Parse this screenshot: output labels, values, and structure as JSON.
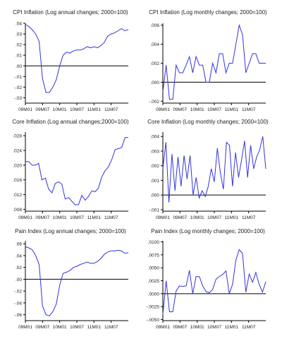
{
  "colors": {
    "line": "#3333dd",
    "axis": "#000000",
    "zero": "#000000"
  },
  "x_ticks": [
    "09M01",
    "09M07",
    "10M01",
    "10M07",
    "11M01",
    "11M07"
  ],
  "chart_data": [
    {
      "type": "line",
      "title": "CPI Inflation (Log annual changes; 2000=100)",
      "ylim": [
        -0.035,
        0.04
      ],
      "yticks": [
        ".04",
        ".03",
        ".02",
        ".01",
        ".00",
        "-.01",
        "-.02",
        "-.03"
      ],
      "ytick_values": [
        0.04,
        0.03,
        0.02,
        0.01,
        0.0,
        -0.01,
        -0.02,
        -0.03
      ],
      "zero_line": 0,
      "series": [
        {
          "values": [
            0.039,
            0.037,
            0.034,
            0.03,
            0.023,
            -0.012,
            -0.025,
            -0.025,
            -0.02,
            -0.013,
            0.0,
            0.01,
            0.013,
            0.012,
            0.014,
            0.015,
            0.015,
            0.016,
            0.018,
            0.017,
            0.018,
            0.017,
            0.019,
            0.022,
            0.028,
            0.03,
            0.031,
            0.033,
            0.035,
            0.033,
            0.034
          ]
        }
      ]
    },
    {
      "type": "line",
      "title": "CPI Inflation (Log monthly changes; 2000=100)",
      "ylim": [
        -0.0022,
        0.0062
      ],
      "yticks": [
        ".006",
        ".004",
        ".002",
        ".000",
        "-.002"
      ],
      "ytick_values": [
        0.006,
        0.004,
        0.002,
        0.0,
        -0.002
      ],
      "zero_line": 0,
      "series": [
        {
          "values": [
            -0.001,
            0.0018,
            -0.0018,
            -0.0018,
            0.0018,
            0.001,
            0.001,
            0.0018,
            0.0027,
            0.001,
            0.0027,
            0.0018,
            0.0018,
            0.0,
            0.0,
            0.002,
            0.001,
            0.003,
            0.003,
            0.001,
            0.002,
            0.002,
            0.004,
            0.006,
            0.005,
            0.001,
            0.002,
            0.003,
            0.003,
            0.002,
            0.002,
            0.002
          ]
        }
      ]
    },
    {
      "type": "line",
      "title": "Core Inflation (Log annual changes;2000=100)",
      "ylim": [
        0.0075,
        0.029
      ],
      "yticks": [
        ".028",
        ".024",
        ".020",
        ".016",
        ".012",
        ".008"
      ],
      "ytick_values": [
        0.028,
        0.024,
        0.02,
        0.016,
        0.012,
        0.008
      ],
      "zero_line": null,
      "series": [
        {
          "values": [
            0.021,
            0.021,
            0.02,
            0.02,
            0.0205,
            0.016,
            0.0165,
            0.0135,
            0.0125,
            0.015,
            0.0155,
            0.0148,
            0.0108,
            0.0112,
            0.0102,
            0.0092,
            0.0093,
            0.0118,
            0.0105,
            0.0115,
            0.013,
            0.0128,
            0.0138,
            0.0168,
            0.0185,
            0.0195,
            0.0215,
            0.0242,
            0.0245,
            0.0248,
            0.0275,
            0.0275
          ]
        }
      ]
    },
    {
      "type": "line",
      "title": "Core Inflation (Log monthly changes; 2000=100)",
      "ylim": [
        -0.0011,
        0.0043
      ],
      "yticks": [
        ".004",
        ".003",
        ".002",
        ".001",
        ".000",
        "-.001"
      ],
      "ytick_values": [
        0.004,
        0.003,
        0.002,
        0.001,
        0.0,
        -0.001
      ],
      "zero_line": 0,
      "series": [
        {
          "values": [
            0.0018,
            0.0036,
            -0.0005,
            0.0028,
            0.0003,
            0.0026,
            0.0006,
            0.0027,
            0.0011,
            0.0027,
            0.0,
            0.0012,
            -0.0002,
            0.0003,
            -0.0001,
            0.0006,
            0.0018,
            0.0009,
            0.0032,
            0.0015,
            0.0004,
            0.0036,
            0.0034,
            0.0006,
            0.0029,
            0.0012,
            0.0024,
            0.0037,
            0.0012,
            0.0034,
            0.0018,
            0.0026,
            0.0031,
            0.004,
            0.0018
          ]
        }
      ]
    },
    {
      "type": "line",
      "title": "Pain Index (Log annual changes; 2000=100)",
      "ylim": [
        -0.07,
        0.065
      ],
      "yticks": [
        ".06",
        ".04",
        ".02",
        ".00",
        "-.02",
        "-.04",
        "-.06"
      ],
      "ytick_values": [
        0.06,
        0.04,
        0.02,
        0.0,
        -0.02,
        -0.04,
        -0.06
      ],
      "zero_line": 0,
      "series": [
        {
          "values": [
            0.055,
            0.053,
            0.05,
            0.04,
            0.025,
            -0.045,
            -0.06,
            -0.062,
            -0.055,
            -0.042,
            -0.01,
            0.01,
            0.012,
            0.015,
            0.02,
            0.022,
            0.025,
            0.027,
            0.029,
            0.027,
            0.027,
            0.03,
            0.035,
            0.042,
            0.046,
            0.048,
            0.048,
            0.049,
            0.048,
            0.044,
            0.045
          ]
        }
      ]
    },
    {
      "type": "line",
      "title": "Pain Index (Log monthly changes; 2000=100)",
      "ylim": [
        -0.0052,
        0.0102
      ],
      "yticks": [
        ".0100",
        ".0075",
        ".0050",
        ".0025",
        ".0000",
        "-.0025",
        "-.0050"
      ],
      "ytick_values": [
        0.01,
        0.0075,
        0.005,
        0.0025,
        0.0,
        -0.0025,
        -0.005
      ],
      "zero_line": 0,
      "series": [
        {
          "values": [
            -0.004,
            0.0025,
            -0.0035,
            -0.0035,
            0.0005,
            0.0015,
            0.0014,
            0.0015,
            0.0045,
            0.0,
            0.0033,
            0.0033,
            0.0015,
            0.0004,
            0.0002,
            0.0008,
            0.0028,
            0.0033,
            0.0037,
            0.0044,
            0.0,
            0.0018,
            0.0065,
            0.0085,
            0.0078,
            0.0003,
            0.0038,
            0.0022,
            0.0041,
            0.0018,
            0.0003,
            0.0023
          ]
        }
      ]
    }
  ]
}
